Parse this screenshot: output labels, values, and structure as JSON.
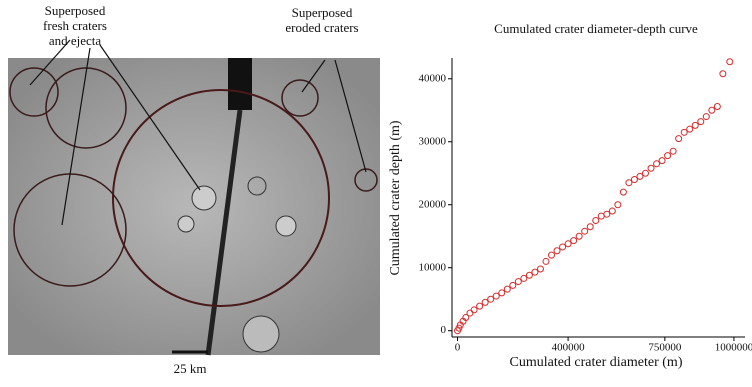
{
  "image": {
    "annotations": [
      {
        "lines": [
          "Superposed",
          "fresh craters",
          "and ejecta"
        ]
      },
      {
        "lines": [
          "Superposed",
          "eroded craters"
        ]
      }
    ],
    "scale_label": "25 km"
  },
  "chart_data": {
    "type": "scatter",
    "title": "Cumulated crater diameter-depth curve",
    "x_label": "Cumulated crater diameter (m)",
    "y_label": "Cumulated crater depth (m)",
    "xlim": [
      -20000,
      1040000
    ],
    "ylim": [
      -1000,
      43300
    ],
    "xticks": [
      0,
      400000,
      750000,
      1000000
    ],
    "yticks": [
      0,
      10000,
      20000,
      30000,
      40000
    ],
    "series": [
      {
        "color": "#d42a2a",
        "x": [
          0,
          5000,
          10000,
          20000,
          30000,
          45000,
          60000,
          80000,
          100000,
          120000,
          140000,
          160000,
          180000,
          200000,
          220000,
          240000,
          260000,
          280000,
          300000,
          320000,
          340000,
          360000,
          380000,
          400000,
          420000,
          440000,
          460000,
          480000,
          500000,
          520000,
          540000,
          560000,
          580000,
          600000,
          620000,
          640000,
          660000,
          680000,
          700000,
          720000,
          740000,
          760000,
          780000,
          800000,
          820000,
          840000,
          860000,
          880000,
          900000,
          920000,
          940000,
          960000,
          985000
        ],
        "values": [
          0,
          400,
          900,
          1500,
          2100,
          2800,
          3300,
          3900,
          4500,
          5000,
          5500,
          6000,
          6600,
          7200,
          7800,
          8300,
          8800,
          9300,
          9800,
          11000,
          12000,
          12700,
          13300,
          13800,
          14300,
          15000,
          15800,
          16500,
          17500,
          18200,
          18500,
          19000,
          20000,
          22000,
          23500,
          24000,
          24500,
          25000,
          25800,
          26500,
          27000,
          27800,
          28500,
          30500,
          31500,
          32000,
          32600,
          33200,
          34000,
          35000,
          35600,
          40800,
          42700
        ]
      }
    ]
  }
}
